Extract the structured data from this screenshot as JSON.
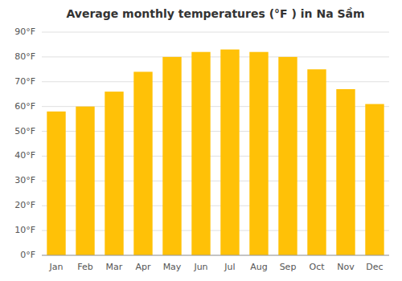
{
  "chart_data": {
    "type": "bar",
    "title": "Average monthly temperatures (°F ) in Na Sầm",
    "categories": [
      "Jan",
      "Feb",
      "Mar",
      "Apr",
      "May",
      "Jun",
      "Jul",
      "Aug",
      "Sep",
      "Oct",
      "Nov",
      "Dec"
    ],
    "values": [
      58,
      60,
      66,
      74,
      80,
      82,
      83,
      82,
      80,
      75,
      67,
      61
    ],
    "color": "#FFC107",
    "ylim": [
      0,
      90
    ],
    "yticks": [
      {
        "value": 0,
        "label": "0°F"
      },
      {
        "value": 10,
        "label": "10°F"
      },
      {
        "value": 20,
        "label": "20°F"
      },
      {
        "value": 30,
        "label": "30°F"
      },
      {
        "value": 40,
        "label": "40°F"
      },
      {
        "value": 50,
        "label": "50°F"
      },
      {
        "value": 60,
        "label": "60°F"
      },
      {
        "value": 70,
        "label": "70°F"
      },
      {
        "value": 80,
        "label": "80°F"
      },
      {
        "value": 90,
        "label": "90°F"
      }
    ],
    "grid": true
  }
}
